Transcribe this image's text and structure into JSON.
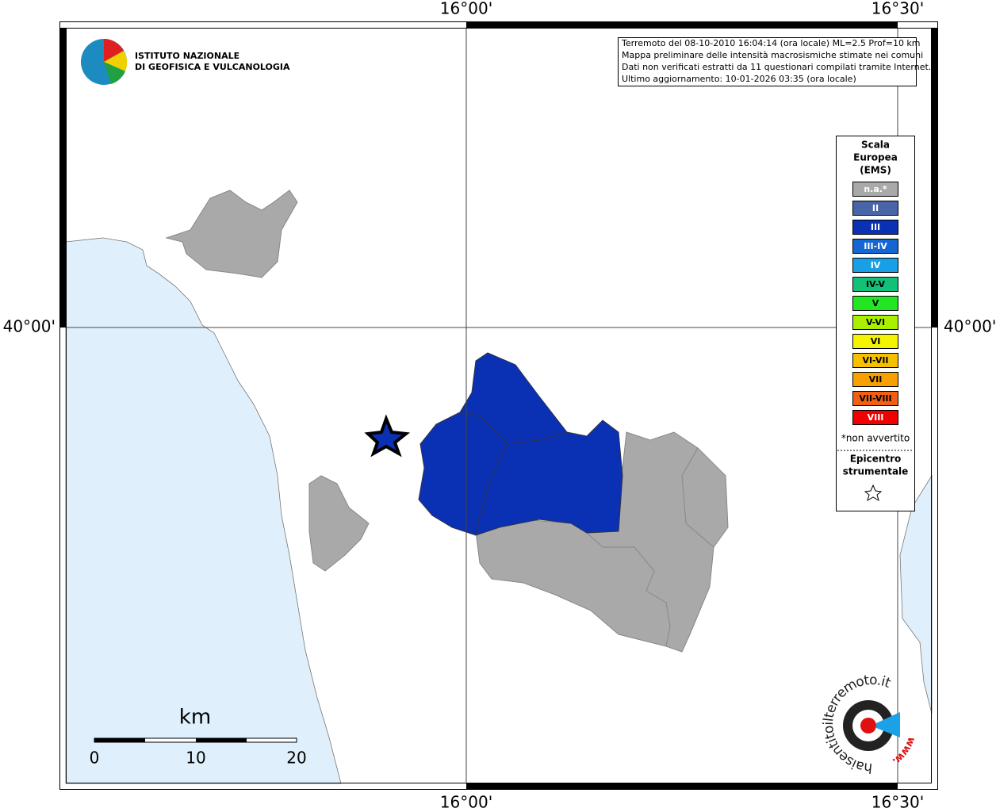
{
  "map": {
    "ticks": {
      "top": [
        "16°00'",
        "16°30'"
      ],
      "bottom": [
        "16°00'",
        "16°30'"
      ],
      "left": [
        "40°00'"
      ],
      "right": [
        "40°00'"
      ]
    },
    "info": [
      "Terremoto del 08-10-2010 16:04:14 (ora locale) ML=2.5 Prof=10 km",
      "Mappa preliminare delle intensità macrosismiche stimate nei comuni",
      "Dati non verificati estratti da 11 questionari compilati tramite Internet.",
      "Ultimo aggiornamento: 10-01-2026 03:35 (ora locale)"
    ],
    "logo": {
      "line1": "ISTITUTO NAZIONALE",
      "line2": "DI GEOFISICA E VULCANOLOGIA"
    },
    "legend": {
      "title": [
        "Scala",
        "Europea",
        "(EMS)"
      ],
      "items": [
        {
          "label": "n.a.*",
          "color": "#a9a9a9",
          "text_color": "#ffffff"
        },
        {
          "label": "II",
          "color": "#4a64a8",
          "text_color": "#ffffff"
        },
        {
          "label": "III",
          "color": "#0a30b4",
          "text_color": "#ffffff"
        },
        {
          "label": "III-IV",
          "color": "#1466d2",
          "text_color": "#ffffff"
        },
        {
          "label": "IV",
          "color": "#18a0e6",
          "text_color": "#ffffff"
        },
        {
          "label": "IV-V",
          "color": "#12c078",
          "text_color": "#000000"
        },
        {
          "label": "V",
          "color": "#22e622",
          "text_color": "#000000"
        },
        {
          "label": "V-VI",
          "color": "#a8f000",
          "text_color": "#000000"
        },
        {
          "label": "VI",
          "color": "#f4f400",
          "text_color": "#000000"
        },
        {
          "label": "VI-VII",
          "color": "#f6c000",
          "text_color": "#000000"
        },
        {
          "label": "VII",
          "color": "#f8a000",
          "text_color": "#000000"
        },
        {
          "label": "VII-VIII",
          "color": "#f06010",
          "text_color": "#000000"
        },
        {
          "label": "VIII",
          "color": "#f00000",
          "text_color": "#ffffff"
        }
      ],
      "note": "*non avvertito",
      "epicenter": [
        "Epicentro",
        "strumentale"
      ]
    },
    "scale": {
      "unit": "km",
      "labels": [
        "0",
        "10",
        "20"
      ]
    },
    "site": {
      "name": "haisentitoilterremoto.it",
      "prefix": "www."
    }
  }
}
